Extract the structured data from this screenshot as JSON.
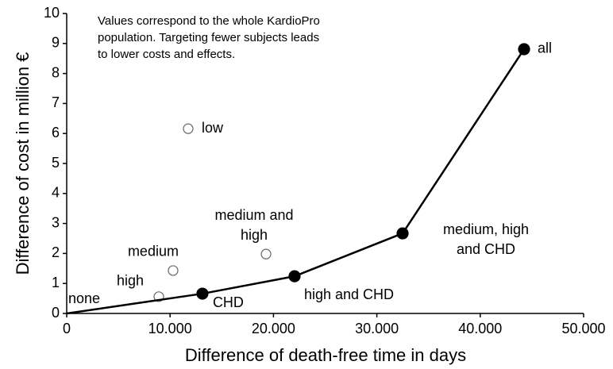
{
  "chart_data": {
    "type": "scatter",
    "xlabel": "Difference of death-free time in days",
    "ylabel": "Difference of cost in million €",
    "annotation": [
      "Values correspond to the whole KardioPro",
      "population. Targeting fewer subjects leads",
      "to lower costs and effects."
    ],
    "xlim": [
      0,
      50000
    ],
    "xticks": [
      0,
      {
        "value": 10000,
        "label": "10.000"
      },
      {
        "value": 20000,
        "label": "20.000"
      },
      {
        "value": 30000,
        "label": "30.000"
      },
      {
        "value": 40000,
        "label": "40.000"
      },
      {
        "value": 50000,
        "label": "50.000"
      }
    ],
    "ylim": [
      0,
      10
    ],
    "yticks": [
      0,
      1,
      2,
      3,
      4,
      5,
      6,
      7,
      8,
      9,
      10
    ],
    "series": [
      {
        "color": "#000000",
        "marker": "open",
        "line": false,
        "x": [
          8910,
          10290,
          19280,
          11750
        ],
        "y": [
          0.56,
          1.43,
          1.98,
          6.16
        ],
        "labels": [
          [
            "high"
          ],
          [
            "medium"
          ],
          [
            "medium and",
            "high"
          ],
          [
            "low"
          ]
        ]
      },
      {
        "color": "#000000",
        "marker": "filled",
        "line": true,
        "x": [
          0,
          13130,
          22040,
          32490,
          44240
        ],
        "y": [
          0,
          0.66,
          1.24,
          2.67,
          8.81
        ],
        "markers": [
          false,
          true,
          true,
          true,
          true
        ],
        "labels": [
          [
            "none"
          ],
          [
            "CHD"
          ],
          [
            "high and CHD"
          ],
          [
            "medium, high",
            "and CHD"
          ],
          [
            "all"
          ]
        ]
      }
    ]
  }
}
